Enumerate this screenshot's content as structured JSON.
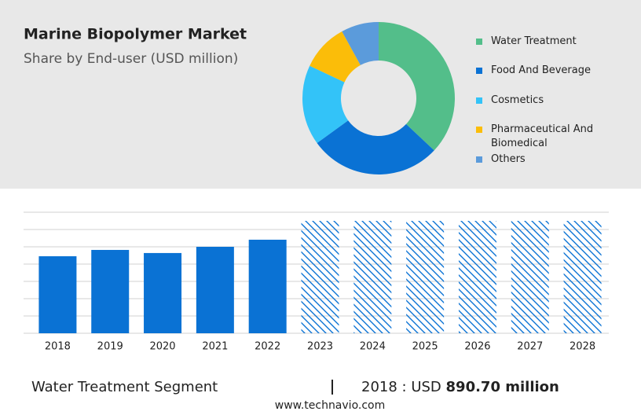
{
  "chart_data": [
    {
      "type": "donut",
      "title": "Marine Biopolymer Market",
      "subtitle": "Share by End-user (USD million)",
      "categories": [
        "Water Treatment",
        "Food And Beverage",
        "Cosmetics",
        "Pharmaceutical And Biomedical",
        "Others"
      ],
      "values": [
        37,
        28,
        17,
        10,
        8
      ],
      "colors": [
        "#53be8a",
        "#0a72d4",
        "#33c3f8",
        "#fbbd09",
        "#5b9bdb"
      ]
    },
    {
      "type": "bar",
      "categories": [
        "2018",
        "2019",
        "2020",
        "2021",
        "2022",
        "2023",
        "2024",
        "2025",
        "2026",
        "2027",
        "2028"
      ],
      "values": [
        890.7,
        964,
        928,
        1000,
        1082,
        1300,
        1300,
        1300,
        1300,
        1300,
        1300
      ],
      "styles": [
        "solid",
        "solid",
        "solid",
        "solid",
        "solid",
        "hatched",
        "hatched",
        "hatched",
        "hatched",
        "hatched",
        "hatched"
      ],
      "color": "#0a72d4",
      "ylim": [
        0,
        1400
      ],
      "yticks": [
        0,
        200,
        400,
        600,
        800,
        1000,
        1200,
        1400
      ],
      "grid": true
    }
  ],
  "footer": {
    "segment": "Water Treatment Segment",
    "label": "2018 : USD",
    "value": "890.70 million",
    "website": "www.technavio.com"
  }
}
